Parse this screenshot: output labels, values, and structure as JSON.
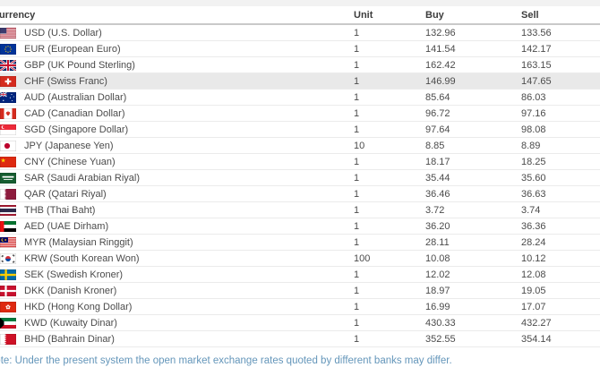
{
  "header": {
    "currency": "Currency",
    "unit": "Unit",
    "buy": "Buy",
    "sell": "Sell"
  },
  "rows": [
    {
      "flag": "us",
      "name": "USD (U.S. Dollar)",
      "unit": "1",
      "buy": "132.96",
      "sell": "133.56",
      "highlighted": false
    },
    {
      "flag": "eu",
      "name": "EUR (European Euro)",
      "unit": "1",
      "buy": "141.54",
      "sell": "142.17",
      "highlighted": false
    },
    {
      "flag": "gb",
      "name": "GBP (UK Pound Sterling)",
      "unit": "1",
      "buy": "162.42",
      "sell": "163.15",
      "highlighted": false
    },
    {
      "flag": "ch",
      "name": "CHF (Swiss Franc)",
      "unit": "1",
      "buy": "146.99",
      "sell": "147.65",
      "highlighted": true
    },
    {
      "flag": "au",
      "name": "AUD (Australian Dollar)",
      "unit": "1",
      "buy": "85.64",
      "sell": "86.03",
      "highlighted": false
    },
    {
      "flag": "ca",
      "name": "CAD (Canadian Dollar)",
      "unit": "1",
      "buy": "96.72",
      "sell": "97.16",
      "highlighted": false
    },
    {
      "flag": "sg",
      "name": "SGD (Singapore Dollar)",
      "unit": "1",
      "buy": "97.64",
      "sell": "98.08",
      "highlighted": false
    },
    {
      "flag": "jp",
      "name": "JPY (Japanese Yen)",
      "unit": "10",
      "buy": "8.85",
      "sell": "8.89",
      "highlighted": false
    },
    {
      "flag": "cn",
      "name": "CNY (Chinese Yuan)",
      "unit": "1",
      "buy": "18.17",
      "sell": "18.25",
      "highlighted": false
    },
    {
      "flag": "sa",
      "name": "SAR (Saudi Arabian Riyal)",
      "unit": "1",
      "buy": "35.44",
      "sell": "35.60",
      "highlighted": false
    },
    {
      "flag": "qa",
      "name": "QAR (Qatari Riyal)",
      "unit": "1",
      "buy": "36.46",
      "sell": "36.63",
      "highlighted": false
    },
    {
      "flag": "th",
      "name": "THB (Thai Baht)",
      "unit": "1",
      "buy": "3.72",
      "sell": "3.74",
      "highlighted": false
    },
    {
      "flag": "ae",
      "name": "AED (UAE Dirham)",
      "unit": "1",
      "buy": "36.20",
      "sell": "36.36",
      "highlighted": false
    },
    {
      "flag": "my",
      "name": "MYR (Malaysian Ringgit)",
      "unit": "1",
      "buy": "28.11",
      "sell": "28.24",
      "highlighted": false
    },
    {
      "flag": "kr",
      "name": "KRW (South Korean Won)",
      "unit": "100",
      "buy": "10.08",
      "sell": "10.12",
      "highlighted": false
    },
    {
      "flag": "se",
      "name": "SEK (Swedish Kroner)",
      "unit": "1",
      "buy": "12.02",
      "sell": "12.08",
      "highlighted": false
    },
    {
      "flag": "dk",
      "name": "DKK (Danish Kroner)",
      "unit": "1",
      "buy": "18.97",
      "sell": "19.05",
      "highlighted": false
    },
    {
      "flag": "hk",
      "name": "HKD (Hong Kong Dollar)",
      "unit": "1",
      "buy": "16.99",
      "sell": "17.07",
      "highlighted": false
    },
    {
      "flag": "kw",
      "name": "KWD (Kuwaity Dinar)",
      "unit": "1",
      "buy": "430.33",
      "sell": "432.27",
      "highlighted": false
    },
    {
      "flag": "bh",
      "name": "BHD (Bahrain Dinar)",
      "unit": "1",
      "buy": "352.55",
      "sell": "354.14",
      "highlighted": false
    }
  ],
  "note": "Note: Under the present system the open market exchange rates quoted by different banks may differ.",
  "colors": {
    "top_strip": "#f2f2f2",
    "header_text": "#3c3c3c",
    "header_border": "#c9c9c9",
    "row_text": "#4b4b4b",
    "row_border": "#ebebeb",
    "highlight_row": "#e9e9e9",
    "note_text": "#6496ba"
  }
}
